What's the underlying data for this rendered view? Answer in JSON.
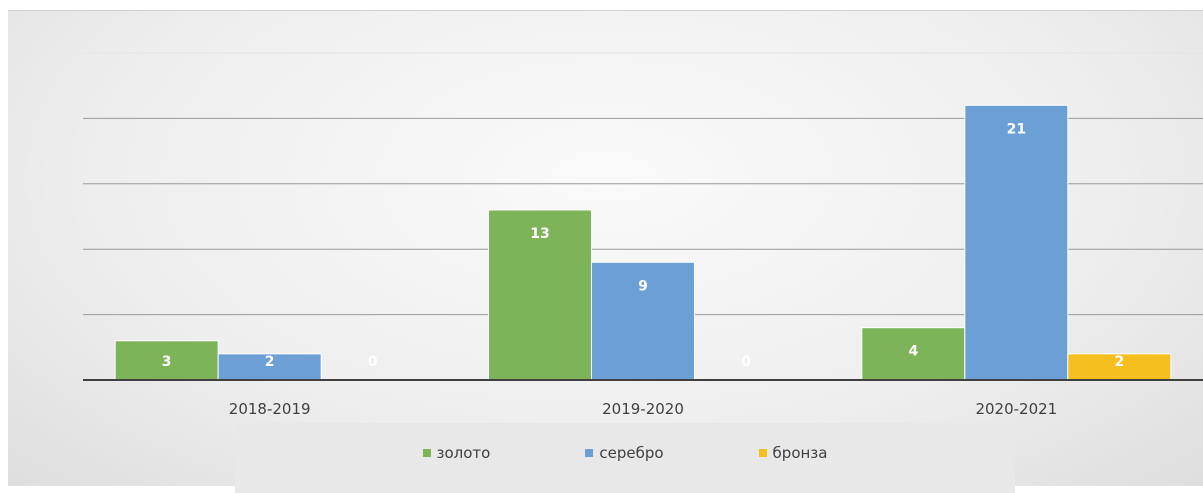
{
  "chart_data": {
    "type": "bar",
    "categories": [
      "2018-2019",
      "2019-2020",
      "2020-2021"
    ],
    "series": [
      {
        "name": "золото",
        "color": "#7db459",
        "values": [
          3,
          13,
          4
        ]
      },
      {
        "name": "серебро",
        "color": "#6b9fd6",
        "values": [
          2,
          9,
          21
        ]
      },
      {
        "name": "бронза",
        "color": "#f5bf1f",
        "values": [
          0,
          0,
          2
        ]
      }
    ],
    "ylim": [
      0,
      25
    ],
    "grid": true,
    "legend_position": "bottom",
    "data_labels": true
  }
}
